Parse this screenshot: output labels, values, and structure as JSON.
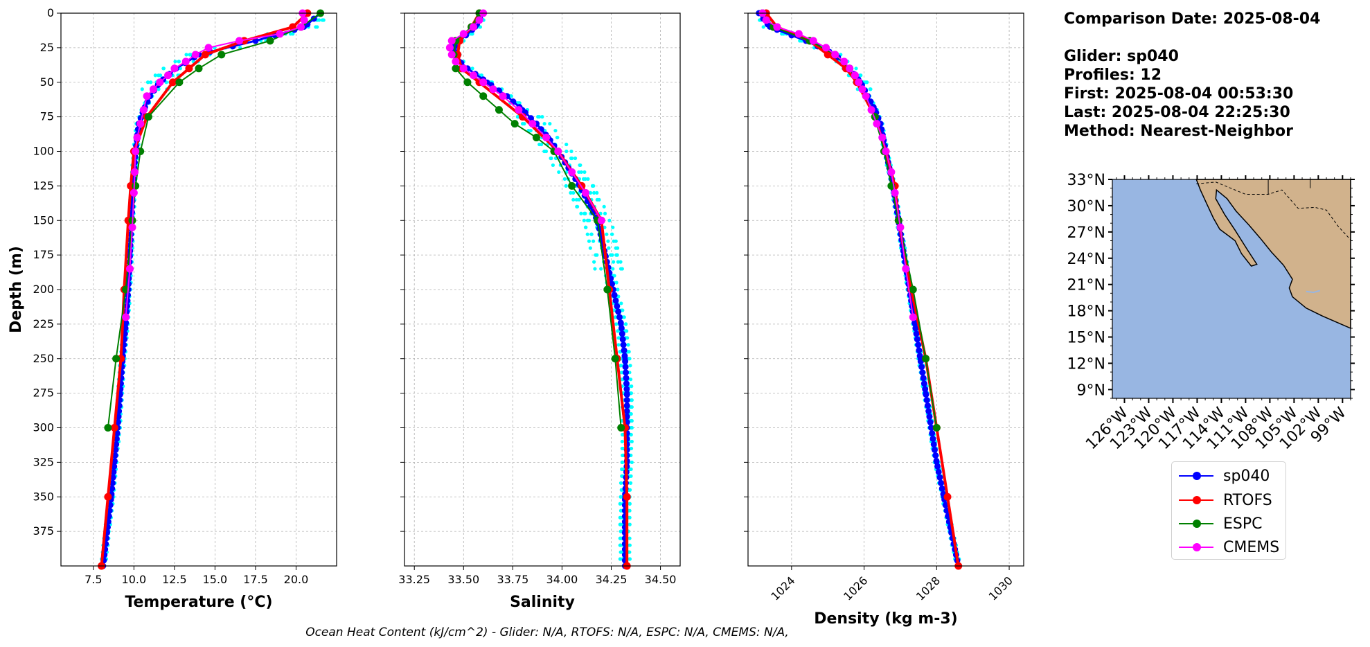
{
  "colors": {
    "glider": "#0000ff",
    "rtofs": "#ff0000",
    "espc": "#008000",
    "cmems": "#ff00ff",
    "cyan": "#00ffff",
    "ocean": "#98b6e2",
    "land": "#d1b28c"
  },
  "info": {
    "date": "Comparison Date: 2025-08-04",
    "glider": "Glider: sp040",
    "profiles": "Profiles: 12",
    "first": "First: 2025-08-04 00:53:30",
    "last": "Last: 2025-08-04 22:25:30",
    "method": "Method: Nearest-Neighbor"
  },
  "footnote": "Ocean Heat Content (kJ/cm^2) - Glider: N/A,  RTOFS: N/A,  ESPC: N/A,  CMEMS: N/A,",
  "legend": [
    {
      "label": "sp040",
      "color": "#0000ff"
    },
    {
      "label": "RTOFS",
      "color": "#ff0000"
    },
    {
      "label": "ESPC",
      "color": "#008000"
    },
    {
      "label": "CMEMS",
      "color": "#ff00ff"
    }
  ],
  "map": {
    "lat_ticks": [
      "33°N",
      "30°N",
      "27°N",
      "24°N",
      "21°N",
      "18°N",
      "15°N",
      "12°N",
      "9°N"
    ],
    "lon_ticks": [
      "126°W",
      "123°W",
      "120°W",
      "117°W",
      "114°W",
      "111°W",
      "108°W",
      "105°W",
      "102°W",
      "99°W"
    ]
  },
  "chart_data": [
    {
      "type": "line",
      "id": "temperature",
      "xlabel": "Temperature (°C)",
      "ylabel": "Depth (m)",
      "xlim": [
        5.5,
        22.5
      ],
      "ylim": [
        400,
        0
      ],
      "xticks": [
        7.5,
        10.0,
        12.5,
        15.0,
        17.5,
        20.0
      ],
      "yticks": [
        0,
        25,
        50,
        75,
        100,
        125,
        150,
        175,
        200,
        225,
        250,
        275,
        300,
        325,
        350,
        375
      ],
      "series": [
        {
          "name": "sp040",
          "depth": [
            0,
            10,
            20,
            30,
            40,
            50,
            60,
            70,
            80,
            90,
            100,
            125,
            150,
            175,
            200,
            225,
            250,
            275,
            300,
            325,
            350,
            375,
            400
          ],
          "values": [
            21.5,
            20.5,
            17.5,
            14.0,
            12.6,
            11.6,
            11.0,
            10.6,
            10.3,
            10.2,
            10.1,
            9.95,
            9.85,
            9.75,
            9.65,
            9.5,
            9.3,
            9.15,
            9.0,
            8.8,
            8.6,
            8.35,
            8.1
          ]
        },
        {
          "name": "RTOFS",
          "depth": [
            0,
            10,
            20,
            30,
            40,
            50,
            75,
            100,
            125,
            150,
            200,
            250,
            300,
            350,
            400
          ],
          "values": [
            20.7,
            19.8,
            16.8,
            14.4,
            13.4,
            12.4,
            10.8,
            10.0,
            9.8,
            9.65,
            9.4,
            9.2,
            8.8,
            8.4,
            8.0
          ]
        },
        {
          "name": "ESPC",
          "depth": [
            0,
            10,
            20,
            30,
            40,
            50,
            75,
            100,
            125,
            150,
            200,
            250,
            300
          ],
          "values": [
            21.5,
            20.3,
            18.4,
            15.4,
            14.0,
            12.8,
            10.9,
            10.4,
            10.1,
            9.9,
            9.5,
            8.9,
            8.4
          ]
        },
        {
          "name": "CMEMS",
          "depth": [
            0,
            5,
            10,
            15,
            20,
            25,
            30,
            35,
            40,
            45,
            50,
            55,
            60,
            70,
            80,
            90,
            100,
            115,
            130,
            155,
            185,
            220
          ],
          "values": [
            20.4,
            20.5,
            20.3,
            19.0,
            16.5,
            14.6,
            13.8,
            13.2,
            12.5,
            12.1,
            11.6,
            11.2,
            10.8,
            10.6,
            10.4,
            10.2,
            10.1,
            10.05,
            10.0,
            9.9,
            9.75,
            9.5
          ]
        }
      ]
    },
    {
      "type": "line",
      "id": "salinity",
      "xlabel": "Salinity",
      "xlim": [
        33.2,
        34.6
      ],
      "ylim": [
        400,
        0
      ],
      "xticks": [
        33.25,
        33.5,
        33.75,
        34.0,
        34.25,
        34.5
      ],
      "series": [
        {
          "name": "sp040",
          "depth": [
            0,
            10,
            20,
            25,
            30,
            35,
            40,
            50,
            60,
            70,
            80,
            90,
            100,
            125,
            150,
            175,
            200,
            225,
            250,
            275,
            300,
            325,
            350,
            375,
            400
          ],
          "values": [
            33.6,
            33.56,
            33.48,
            33.45,
            33.46,
            33.48,
            33.52,
            33.62,
            33.72,
            33.8,
            33.87,
            33.93,
            33.98,
            34.09,
            34.18,
            34.22,
            34.26,
            34.3,
            34.32,
            34.33,
            34.33,
            34.33,
            34.32,
            34.32,
            34.32
          ]
        },
        {
          "name": "RTOFS",
          "depth": [
            0,
            10,
            20,
            30,
            40,
            50,
            75,
            100,
            125,
            150,
            200,
            250,
            300,
            350,
            400
          ],
          "values": [
            33.58,
            33.54,
            33.48,
            33.47,
            33.49,
            33.58,
            33.8,
            33.98,
            34.1,
            34.2,
            34.24,
            34.28,
            34.32,
            34.33,
            34.33
          ]
        },
        {
          "name": "ESPC",
          "depth": [
            0,
            10,
            20,
            30,
            40,
            50,
            60,
            70,
            80,
            90,
            100,
            125,
            150,
            200,
            250,
            300
          ],
          "values": [
            33.58,
            33.54,
            33.46,
            33.45,
            33.46,
            33.52,
            33.6,
            33.68,
            33.76,
            33.87,
            33.96,
            34.05,
            34.18,
            34.23,
            34.27,
            34.3
          ]
        },
        {
          "name": "CMEMS",
          "depth": [
            0,
            5,
            10,
            15,
            20,
            25,
            30,
            35,
            40,
            45,
            50,
            55,
            60,
            70,
            80,
            90,
            100,
            115,
            130,
            150
          ],
          "values": [
            33.6,
            33.58,
            33.55,
            33.5,
            33.44,
            33.43,
            33.44,
            33.46,
            33.5,
            33.55,
            33.6,
            33.65,
            33.7,
            33.78,
            33.85,
            33.92,
            33.98,
            34.05,
            34.12,
            34.2
          ]
        }
      ]
    },
    {
      "type": "line",
      "id": "density",
      "xlabel": "Density (kg m-3)",
      "xlim": [
        1022.8,
        1030.4
      ],
      "ylim": [
        400,
        0
      ],
      "xticks": [
        1024,
        1026,
        1028,
        1030
      ],
      "series": [
        {
          "name": "sp040",
          "depth": [
            0,
            10,
            20,
            30,
            40,
            50,
            60,
            70,
            80,
            100,
            125,
            150,
            175,
            200,
            225,
            250,
            275,
            300,
            325,
            350,
            375,
            400
          ],
          "values": [
            1023.1,
            1023.4,
            1024.4,
            1025.2,
            1025.6,
            1025.9,
            1026.1,
            1026.3,
            1026.45,
            1026.6,
            1026.8,
            1026.95,
            1027.1,
            1027.25,
            1027.4,
            1027.55,
            1027.7,
            1027.85,
            1028.0,
            1028.2,
            1028.4,
            1028.6
          ]
        },
        {
          "name": "RTOFS",
          "depth": [
            0,
            10,
            20,
            30,
            40,
            50,
            75,
            100,
            125,
            150,
            200,
            250,
            300,
            350,
            400
          ],
          "values": [
            1023.3,
            1023.6,
            1024.5,
            1025.0,
            1025.5,
            1025.8,
            1026.3,
            1026.6,
            1026.85,
            1026.95,
            1027.3,
            1027.7,
            1028.0,
            1028.3,
            1028.6
          ]
        },
        {
          "name": "ESPC",
          "depth": [
            0,
            10,
            20,
            30,
            40,
            50,
            75,
            100,
            125,
            150,
            200,
            250,
            300
          ],
          "values": [
            1023.2,
            1023.5,
            1024.5,
            1025.2,
            1025.6,
            1025.85,
            1026.3,
            1026.55,
            1026.75,
            1026.95,
            1027.35,
            1027.7,
            1028.0
          ]
        },
        {
          "name": "CMEMS",
          "depth": [
            0,
            5,
            10,
            15,
            20,
            25,
            30,
            35,
            40,
            45,
            50,
            55,
            60,
            70,
            80,
            90,
            100,
            115,
            130,
            155,
            185,
            220
          ],
          "values": [
            1023.2,
            1023.3,
            1023.6,
            1024.2,
            1024.6,
            1024.95,
            1025.2,
            1025.45,
            1025.6,
            1025.75,
            1025.85,
            1025.95,
            1026.05,
            1026.2,
            1026.35,
            1026.5,
            1026.6,
            1026.75,
            1026.85,
            1027.0,
            1027.15,
            1027.35
          ]
        }
      ]
    }
  ]
}
